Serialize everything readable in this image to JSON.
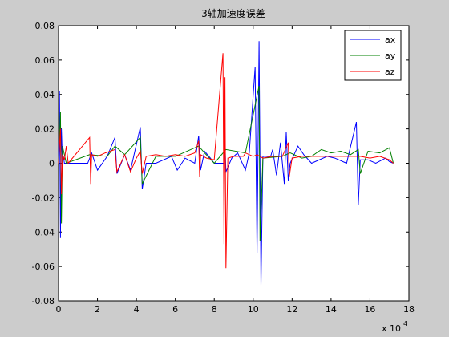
{
  "chart_data": {
    "type": "line",
    "title": "3轴加速度误差",
    "xlabel": "",
    "ylabel": "",
    "x_multiplier_label": "x 10",
    "x_multiplier_exp": "4",
    "xlim": [
      0,
      18
    ],
    "ylim": [
      -0.08,
      0.08
    ],
    "x_ticks": [
      "0",
      "2",
      "4",
      "6",
      "8",
      "10",
      "12",
      "14",
      "16",
      "18"
    ],
    "y_ticks": [
      "-0.08",
      "-0.06",
      "-0.04",
      "-0.02",
      "0",
      "0.02",
      "0.04",
      "0.06",
      "0.08"
    ],
    "x_tick_values": [
      0,
      2,
      4,
      6,
      8,
      10,
      12,
      14,
      16,
      18
    ],
    "y_tick_values": [
      -0.08,
      -0.06,
      -0.04,
      -0.02,
      0,
      0.02,
      0.04,
      0.06,
      0.08
    ],
    "grid": false,
    "legend_position": "top-right",
    "series": [
      {
        "name": "ax",
        "color": "#0000ff",
        "x": [
          0,
          0.05,
          0.1,
          0.15,
          0.2,
          0.25,
          0.3,
          0.5,
          1.5,
          1.7,
          2.0,
          2.5,
          2.9,
          3.0,
          3.4,
          3.7,
          4.2,
          4.3,
          4.5,
          5.0,
          5.8,
          6.1,
          6.5,
          7.0,
          7.2,
          7.3,
          7.5,
          7.8,
          8.0,
          8.5,
          8.55,
          8.6,
          8.9,
          9.2,
          9.6,
          9.8,
          10.1,
          10.2,
          10.3,
          10.4,
          10.5,
          10.9,
          11.0,
          11.2,
          11.4,
          11.6,
          11.7,
          11.8,
          11.9,
          12.3,
          12.6,
          13.0,
          13.8,
          14.2,
          14.8,
          15.3,
          15.4,
          15.5,
          15.9,
          16.3,
          16.8,
          17.0,
          17.2
        ],
        "y": [
          0,
          0.042,
          -0.043,
          0.02,
          0,
          0.004,
          0,
          0,
          0,
          0.006,
          -0.004,
          0.004,
          0.015,
          -0.006,
          0.005,
          -0.004,
          0.021,
          -0.015,
          0,
          0,
          0.004,
          -0.004,
          0.003,
          0,
          0.016,
          -0.004,
          0.007,
          0.003,
          0,
          0,
          0.012,
          -0.005,
          0.003,
          0.006,
          -0.004,
          0.006,
          0.056,
          -0.052,
          0.071,
          -0.071,
          0.004,
          0.004,
          0.008,
          -0.007,
          0.012,
          -0.012,
          0.018,
          -0.01,
          0,
          0.01,
          0.005,
          0,
          0.004,
          0.003,
          0,
          0.024,
          -0.024,
          0.002,
          0.002,
          0,
          0.003,
          0.001,
          0
        ],
        "curve": "bursts"
      },
      {
        "name": "ay",
        "color": "#008000",
        "x": [
          0,
          0.1,
          0.15,
          0.2,
          0.4,
          1.6,
          2.5,
          2.9,
          3.4,
          4.2,
          4.3,
          5.0,
          6.0,
          7.2,
          7.5,
          8.0,
          8.6,
          9.6,
          10.3,
          10.35,
          10.5,
          11.5,
          11.9,
          12.5,
          13.0,
          13.5,
          14.0,
          14.5,
          15.0,
          15.4,
          15.5,
          15.9,
          16.5,
          17.0,
          17.2
        ],
        "y": [
          0,
          0.03,
          -0.035,
          0.01,
          0,
          0.005,
          0.004,
          0.01,
          0.005,
          0.015,
          -0.012,
          0.004,
          0.004,
          0.01,
          0.006,
          0,
          0.008,
          0.006,
          0.045,
          -0.045,
          0.003,
          0.004,
          0.006,
          0.003,
          0.004,
          0.008,
          0.006,
          0.007,
          0.005,
          0.008,
          -0.006,
          0.007,
          0.006,
          0.009,
          0
        ]
      },
      {
        "name": "az",
        "color": "#ff0000",
        "x": [
          0,
          0.1,
          0.15,
          0.2,
          0.3,
          0.4,
          0.5,
          1.6,
          1.65,
          1.7,
          2.0,
          2.4,
          2.9,
          3.0,
          3.4,
          3.7,
          4.0,
          4.2,
          4.3,
          4.5,
          5.0,
          5.5,
          6.0,
          6.5,
          7.0,
          7.2,
          7.25,
          7.3,
          7.6,
          8.0,
          8.45,
          8.5,
          8.55,
          8.6,
          8.7,
          9.0,
          9.5,
          9.6,
          10.0,
          10.2,
          10.5,
          11.0,
          11.5,
          11.8,
          11.85,
          12.0,
          12.5,
          13.0,
          14.0,
          14.5,
          15.0,
          15.5,
          16.0,
          16.5,
          17.0,
          17.2
        ],
        "y": [
          0,
          0.02,
          -0.018,
          0.005,
          0.002,
          0.01,
          0,
          0.015,
          -0.012,
          0.005,
          0.004,
          0.006,
          0.008,
          -0.005,
          0.005,
          -0.005,
          0.003,
          0.007,
          -0.006,
          0.004,
          0.005,
          0.004,
          0.005,
          0.004,
          0.006,
          0.013,
          -0.008,
          0.005,
          0.003,
          0.002,
          0.064,
          -0.047,
          0.05,
          -0.061,
          0.003,
          0.004,
          0.004,
          0.006,
          0.004,
          0.005,
          0.003,
          0.004,
          0.004,
          0.012,
          -0.008,
          0.003,
          0.004,
          0.004,
          0.004,
          0.004,
          0.004,
          0.004,
          0.003,
          0.004,
          0.002,
          0
        ]
      }
    ]
  }
}
